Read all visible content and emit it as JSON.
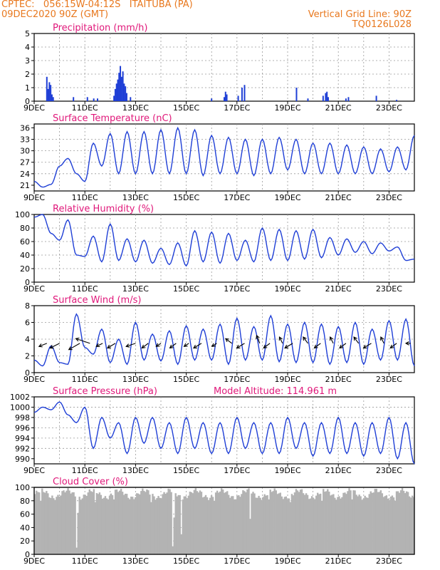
{
  "header": {
    "line1_left": "CPTEC:   056:15W-04:12S   ITAITUBA (PA)",
    "line1_right": "Vertical Grid Line: 90Z",
    "line2_left": "09DEC2020 90Z (GMT)",
    "line2_right": "TQ0126L028"
  },
  "colors": {
    "header": "#e8781e",
    "title": "#e0187a",
    "line": "#1f3fd6",
    "cloud": "#b3b3b3",
    "arrow": "#000000"
  },
  "x_axis": {
    "tick_labels": [
      "9DEC",
      "11DEC",
      "13DEC",
      "15DEC",
      "17DEC",
      "19DEC",
      "21DEC",
      "23DEC"
    ],
    "tick_days": [
      0,
      2,
      4,
      6,
      8,
      10,
      12,
      14
    ],
    "range_days": [
      0,
      15
    ],
    "grid_interval_days": 1
  },
  "chart_data": [
    {
      "type": "bar",
      "title": "Precipitation (mm/h)",
      "ylim": [
        0,
        5
      ],
      "yticks": [
        0,
        1,
        2,
        3,
        4,
        5
      ],
      "bars": [
        {
          "x": 0.5,
          "v": 1.8
        },
        {
          "x": 0.55,
          "v": 0.9
        },
        {
          "x": 0.6,
          "v": 1.4
        },
        {
          "x": 0.65,
          "v": 1.2
        },
        {
          "x": 0.7,
          "v": 0.5
        },
        {
          "x": 0.75,
          "v": 0.3
        },
        {
          "x": 1.55,
          "v": 0.3
        },
        {
          "x": 2.1,
          "v": 0.3
        },
        {
          "x": 2.35,
          "v": 0.2
        },
        {
          "x": 2.5,
          "v": 0.2
        },
        {
          "x": 3.15,
          "v": 0.4
        },
        {
          "x": 3.2,
          "v": 0.9
        },
        {
          "x": 3.25,
          "v": 1.3
        },
        {
          "x": 3.3,
          "v": 1.6
        },
        {
          "x": 3.35,
          "v": 2.1
        },
        {
          "x": 3.4,
          "v": 2.6
        },
        {
          "x": 3.45,
          "v": 1.8
        },
        {
          "x": 3.5,
          "v": 2.2
        },
        {
          "x": 3.55,
          "v": 1.3
        },
        {
          "x": 3.6,
          "v": 1.1
        },
        {
          "x": 3.65,
          "v": 0.6
        },
        {
          "x": 3.8,
          "v": 0.3
        },
        {
          "x": 7.0,
          "v": 0.2
        },
        {
          "x": 7.5,
          "v": 0.3
        },
        {
          "x": 7.55,
          "v": 0.7
        },
        {
          "x": 7.6,
          "v": 0.5
        },
        {
          "x": 8.05,
          "v": 0.4
        },
        {
          "x": 8.2,
          "v": 1.0
        },
        {
          "x": 8.3,
          "v": 1.2
        },
        {
          "x": 10.35,
          "v": 1.0
        },
        {
          "x": 10.8,
          "v": 0.2
        },
        {
          "x": 11.4,
          "v": 0.4
        },
        {
          "x": 11.5,
          "v": 0.6
        },
        {
          "x": 11.55,
          "v": 0.7
        },
        {
          "x": 11.6,
          "v": 0.3
        },
        {
          "x": 12.3,
          "v": 0.2
        },
        {
          "x": 12.4,
          "v": 0.3
        },
        {
          "x": 13.5,
          "v": 0.4
        },
        {
          "x": 14.3,
          "v": 0.1
        }
      ]
    },
    {
      "type": "line",
      "title": "Surface Temperature (nC)",
      "ylim": [
        19.5,
        37
      ],
      "yticks": [
        21,
        24,
        27,
        30,
        33,
        36
      ],
      "min_phase_days": 0.5,
      "peaks": [
        21.2,
        28,
        32,
        34.5,
        35,
        35.5,
        35,
        36,
        36,
        35.5,
        34,
        33.5,
        33,
        33,
        33.5,
        33,
        32,
        32,
        31.5,
        31,
        30.5,
        31,
        34
      ],
      "troughs": [
        20.5,
        26,
        22,
        26,
        24,
        24,
        24,
        24,
        24,
        23.5,
        24,
        24,
        23.5,
        24,
        25,
        24,
        24,
        24,
        24,
        24,
        24.5,
        25,
        25
      ],
      "series": [
        {
          "name": "",
          "values": [
            22,
            20.5,
            21.2,
            26,
            28,
            24,
            22,
            32,
            26,
            34.5,
            24,
            35,
            24,
            35,
            24,
            35.5,
            24,
            36,
            24,
            35.5,
            23.5,
            34,
            24,
            33.5,
            24,
            33,
            23.5,
            33,
            24,
            33.5,
            25,
            33,
            24,
            32,
            24,
            32,
            24,
            31.5,
            24,
            31,
            24,
            30.5,
            24.5,
            31,
            25,
            34
          ]
        }
      ]
    },
    {
      "type": "line",
      "title": "Relative Humidity (%)",
      "ylim": [
        0,
        100
      ],
      "yticks": [
        0,
        20,
        40,
        60,
        80,
        100
      ],
      "series": [
        {
          "name": "",
          "values": [
            96,
            100,
            72,
            62,
            92,
            40,
            38,
            68,
            30,
            86,
            32,
            64,
            30,
            62,
            28,
            50,
            26,
            58,
            24,
            76,
            30,
            74,
            28,
            72,
            32,
            62,
            30,
            80,
            32,
            78,
            32,
            76,
            34,
            78,
            36,
            66,
            40,
            64,
            44,
            60,
            42,
            58,
            46,
            52,
            32,
            34
          ]
        }
      ]
    },
    {
      "type": "line",
      "title": "Surface Wind (m/s)",
      "ylim": [
        0,
        8
      ],
      "yticks": [
        0,
        2,
        4,
        6,
        8
      ],
      "series": [
        {
          "name": "",
          "values": [
            1.5,
            0.8,
            3.2,
            1.2,
            1.0,
            7.0,
            3.0,
            2.2,
            5.2,
            1.2,
            4.0,
            1.0,
            6.0,
            1.5,
            4.6,
            1.4,
            5.0,
            1.0,
            5.6,
            1.5,
            5.2,
            1.5,
            5.8,
            1.0,
            6.5,
            1.5,
            5.5,
            1.5,
            6.8,
            1.3,
            5.8,
            1.2,
            6.0,
            1.2,
            5.8,
            1.0,
            5.5,
            1.2,
            6.0,
            1.0,
            5.2,
            1.5,
            6.2,
            1.5,
            6.4,
            0.8
          ]
        }
      ],
      "arrows": [
        {
          "x": 0.5,
          "dx": -0.5,
          "dy": -0.2
        },
        {
          "x": 1.0,
          "dx": -0.6,
          "dy": -0.3
        },
        {
          "x": 1.8,
          "dx": -0.7,
          "dy": -0.4
        },
        {
          "x": 2.2,
          "dx": -0.9,
          "dy": 0.3
        },
        {
          "x": 2.7,
          "dx": -0.4,
          "dy": -0.2
        },
        {
          "x": 3.2,
          "dx": -0.5,
          "dy": -0.3
        },
        {
          "x": 4.0,
          "dx": -0.6,
          "dy": -0.2
        },
        {
          "x": 4.5,
          "dx": -0.4,
          "dy": -0.3
        },
        {
          "x": 5.0,
          "dx": -0.3,
          "dy": -0.2
        },
        {
          "x": 5.6,
          "dx": -0.4,
          "dy": -0.3
        },
        {
          "x": 6.1,
          "dx": -0.3,
          "dy": -0.2
        },
        {
          "x": 6.6,
          "dx": -0.5,
          "dy": -0.3
        },
        {
          "x": 7.2,
          "dx": -0.3,
          "dy": -0.2
        },
        {
          "x": 7.8,
          "dx": -0.4,
          "dy": 0.3
        },
        {
          "x": 8.3,
          "dx": -0.5,
          "dy": -0.3
        },
        {
          "x": 8.9,
          "dx": -0.2,
          "dy": 0.5
        },
        {
          "x": 9.3,
          "dx": -0.4,
          "dy": -0.3
        },
        {
          "x": 9.8,
          "dx": -0.2,
          "dy": 0.4
        },
        {
          "x": 10.2,
          "dx": -0.5,
          "dy": -0.3
        },
        {
          "x": 10.8,
          "dx": -0.3,
          "dy": 0.4
        },
        {
          "x": 11.3,
          "dx": -0.4,
          "dy": -0.3
        },
        {
          "x": 11.8,
          "dx": -0.2,
          "dy": 0.4
        },
        {
          "x": 12.3,
          "dx": -0.4,
          "dy": -0.3
        },
        {
          "x": 12.8,
          "dx": -0.3,
          "dy": 0.4
        },
        {
          "x": 13.3,
          "dx": -0.5,
          "dy": -0.3
        },
        {
          "x": 13.8,
          "dx": -0.2,
          "dy": 0.4
        },
        {
          "x": 14.3,
          "dx": -0.4,
          "dy": -0.3
        },
        {
          "x": 14.85,
          "dx": -0.3,
          "dy": 0.0
        }
      ]
    },
    {
      "type": "line",
      "title": "Surface Pressure (hPa)",
      "annotation": "Model Altitude: 114.961  m",
      "ylim": [
        989,
        1002
      ],
      "yticks": [
        990,
        992,
        994,
        996,
        998,
        1000,
        1002
      ],
      "series": [
        {
          "name": "",
          "values": [
            999,
            1000,
            999.5,
            1001,
            998.5,
            997,
            1000,
            992,
            998,
            994,
            997,
            991,
            998,
            993,
            998,
            992,
            997,
            991,
            998,
            992,
            997,
            991,
            997,
            991,
            998,
            992,
            997,
            991,
            997,
            991,
            998,
            992,
            997,
            990.5,
            997,
            991,
            998,
            991,
            997,
            990.5,
            997,
            991,
            998,
            990,
            997,
            989
          ]
        }
      ]
    },
    {
      "type": "area",
      "title": "Cloud Cover (%)",
      "ylim": [
        0,
        100
      ],
      "yticks": [
        0,
        20,
        40,
        60,
        80,
        100
      ],
      "baseline_percent": 90,
      "dips": [
        {
          "x": 0.2,
          "v": 80
        },
        {
          "x": 0.6,
          "v": 84
        },
        {
          "x": 1.65,
          "v": 10
        },
        {
          "x": 1.7,
          "v": 62
        },
        {
          "x": 2.4,
          "v": 78
        },
        {
          "x": 3.1,
          "v": 82
        },
        {
          "x": 4.6,
          "v": 78
        },
        {
          "x": 5.45,
          "v": 12
        },
        {
          "x": 5.5,
          "v": 55
        },
        {
          "x": 5.8,
          "v": 30
        },
        {
          "x": 6.6,
          "v": 85
        },
        {
          "x": 7.1,
          "v": 80
        },
        {
          "x": 8.5,
          "v": 53
        },
        {
          "x": 9.2,
          "v": 82
        },
        {
          "x": 10.1,
          "v": 78
        },
        {
          "x": 11.3,
          "v": 80
        },
        {
          "x": 12.5,
          "v": 82
        },
        {
          "x": 13.1,
          "v": 85
        },
        {
          "x": 14.2,
          "v": 80
        }
      ]
    }
  ]
}
